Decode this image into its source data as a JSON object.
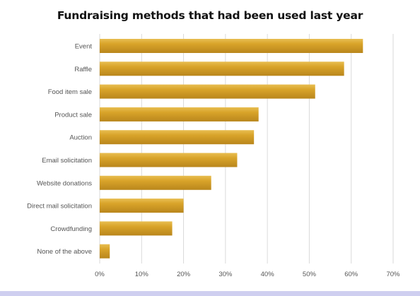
{
  "chart_data": {
    "type": "bar",
    "orientation": "horizontal",
    "title": "Fundraising methods that had been used last year",
    "xlabel": "",
    "ylabel": "",
    "categories": [
      "Event",
      "Raffle",
      "Food item sale",
      "Product sale",
      "Auction",
      "Email solicitation",
      "Website donations",
      "Direct mail solicitation",
      "Crowdfunding",
      "None of the above"
    ],
    "values": [
      62.8,
      58.3,
      51.4,
      37.9,
      36.8,
      32.8,
      26.6,
      20.0,
      17.3,
      2.4
    ],
    "value_unit": "%",
    "xlim": [
      0,
      70
    ],
    "x_ticks": [
      "0%",
      "10%",
      "20%",
      "30%",
      "40%",
      "50%",
      "60%",
      "70%"
    ],
    "grid": true,
    "legend": "none",
    "bar_color": "#d9a42a",
    "bar_highlight_color": "#e8be52",
    "bar_shadow_color": "#b9861c"
  },
  "colors": {
    "background": "#ffffff",
    "gridline": "#dadada",
    "label": "#555555",
    "bottom_strip": "#cfcff0"
  }
}
